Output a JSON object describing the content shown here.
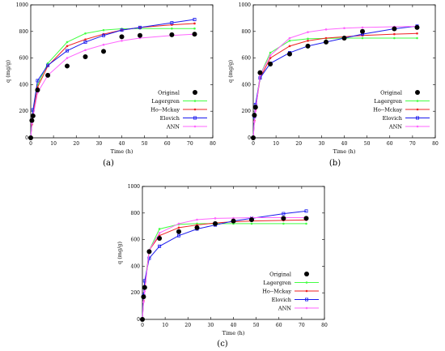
{
  "figure": {
    "captions": [
      "(a)",
      "(b)",
      "(c)"
    ]
  },
  "chart_data": [
    {
      "type": "scatter",
      "panel": "(a)",
      "xlabel": "Time (h)",
      "ylabel": "q (mg/g)",
      "xlim": [
        0,
        80
      ],
      "ylim": [
        0,
        1000
      ],
      "xticks": [
        0,
        10,
        20,
        30,
        40,
        50,
        60,
        70,
        80
      ],
      "yticks": [
        0,
        200,
        400,
        600,
        800,
        1000
      ],
      "legend_position": "center-right",
      "series": [
        {
          "name": "Original",
          "color": "#000000",
          "style": "dots",
          "x": [
            0,
            0.5,
            1,
            3,
            7.5,
            16,
            24,
            32,
            40,
            48,
            62,
            72
          ],
          "y": [
            0,
            130,
            165,
            360,
            470,
            540,
            610,
            650,
            760,
            770,
            775,
            780
          ]
        },
        {
          "name": "Lagergren",
          "color": "#44ff44",
          "style": "line",
          "x": [
            0,
            0.5,
            1,
            3,
            7.5,
            16,
            24,
            32,
            40,
            48,
            62,
            72
          ],
          "y": [
            0,
            120,
            200,
            400,
            560,
            720,
            785,
            810,
            820,
            822,
            822,
            822
          ]
        },
        {
          "name": "Ho--Mckay",
          "color": "#ee2222",
          "style": "line",
          "x": [
            0,
            0.5,
            1,
            3,
            7.5,
            16,
            24,
            32,
            40,
            48,
            62,
            72
          ],
          "y": [
            0,
            100,
            170,
            380,
            540,
            690,
            740,
            780,
            810,
            830,
            850,
            860
          ]
        },
        {
          "name": "Elovich",
          "color": "#1a1aee",
          "style": "line",
          "x": [
            0,
            0.5,
            1,
            3,
            7.5,
            16,
            24,
            32,
            40,
            48,
            62,
            72
          ],
          "y": [
            0,
            130,
            210,
            430,
            545,
            655,
            720,
            770,
            810,
            830,
            865,
            890
          ]
        },
        {
          "name": "ANN",
          "color": "#ff66ff",
          "style": "line",
          "x": [
            0,
            0.5,
            1,
            3,
            7.5,
            16,
            24,
            32,
            40,
            48,
            62,
            72
          ],
          "y": [
            0,
            110,
            160,
            340,
            470,
            600,
            660,
            700,
            730,
            750,
            770,
            780
          ]
        }
      ]
    },
    {
      "type": "scatter",
      "panel": "(b)",
      "xlabel": "Time (h)",
      "ylabel": "q (mg/g)",
      "xlim": [
        0,
        80
      ],
      "ylim": [
        0,
        1000
      ],
      "xticks": [
        0,
        10,
        20,
        30,
        40,
        50,
        60,
        70,
        80
      ],
      "yticks": [
        0,
        200,
        400,
        600,
        800,
        1000
      ],
      "legend_position": "center-right",
      "series": [
        {
          "name": "Original",
          "color": "#000000",
          "style": "dots",
          "x": [
            0,
            0.5,
            1,
            3,
            7.5,
            16,
            24,
            32,
            40,
            48,
            62,
            72
          ],
          "y": [
            0,
            170,
            230,
            490,
            555,
            630,
            690,
            720,
            750,
            800,
            820,
            830
          ]
        },
        {
          "name": "Lagergren",
          "color": "#44ff44",
          "style": "line",
          "x": [
            0,
            0.5,
            1,
            3,
            7.5,
            16,
            24,
            32,
            40,
            48,
            62,
            72
          ],
          "y": [
            0,
            150,
            230,
            470,
            640,
            730,
            745,
            748,
            750,
            750,
            750,
            750
          ]
        },
        {
          "name": "Ho--Mckay",
          "color": "#ee2222",
          "style": "line",
          "x": [
            0,
            0.5,
            1,
            3,
            7.5,
            16,
            24,
            32,
            40,
            48,
            62,
            72
          ],
          "y": [
            0,
            130,
            210,
            450,
            600,
            690,
            730,
            750,
            760,
            770,
            780,
            785
          ]
        },
        {
          "name": "Elovich",
          "color": "#1a1aee",
          "style": "line",
          "x": [
            0,
            0.5,
            1,
            3,
            7.5,
            16,
            24,
            32,
            40,
            48,
            62,
            72
          ],
          "y": [
            0,
            160,
            250,
            450,
            560,
            640,
            690,
            720,
            750,
            780,
            820,
            840
          ]
        },
        {
          "name": "ANN",
          "color": "#ff66ff",
          "style": "line",
          "x": [
            0,
            0.5,
            1,
            3,
            7.5,
            16,
            24,
            32,
            40,
            48,
            62,
            72
          ],
          "y": [
            0,
            120,
            200,
            470,
            620,
            750,
            795,
            815,
            825,
            830,
            835,
            838
          ]
        }
      ]
    },
    {
      "type": "scatter",
      "panel": "(c)",
      "xlabel": "Time (h)",
      "ylabel": "q (mg/g)",
      "xlim": [
        0,
        80
      ],
      "ylim": [
        0,
        1000
      ],
      "xticks": [
        0,
        10,
        20,
        30,
        40,
        50,
        60,
        70,
        80
      ],
      "yticks": [
        0,
        200,
        400,
        600,
        800,
        1000
      ],
      "legend_position": "center-right",
      "series": [
        {
          "name": "Original",
          "color": "#000000",
          "style": "dots",
          "x": [
            0,
            0.5,
            1,
            3,
            7.5,
            16,
            24,
            32,
            40,
            48,
            62,
            72
          ],
          "y": [
            0,
            170,
            240,
            510,
            610,
            660,
            690,
            720,
            740,
            750,
            760,
            760
          ]
        },
        {
          "name": "Lagergren",
          "color": "#44ff44",
          "style": "line",
          "x": [
            0,
            0.5,
            1,
            3,
            7.5,
            16,
            24,
            32,
            40,
            48,
            62,
            72
          ],
          "y": [
            0,
            160,
            250,
            520,
            680,
            715,
            720,
            720,
            720,
            720,
            720,
            720
          ]
        },
        {
          "name": "Ho--Mckay",
          "color": "#ee2222",
          "style": "line",
          "x": [
            0,
            0.5,
            1,
            3,
            7.5,
            16,
            24,
            32,
            40,
            48,
            62,
            72
          ],
          "y": [
            0,
            140,
            230,
            520,
            630,
            690,
            710,
            725,
            735,
            740,
            745,
            748
          ]
        },
        {
          "name": "Elovich",
          "color": "#1a1aee",
          "style": "line",
          "x": [
            0,
            0.5,
            1,
            3,
            7.5,
            16,
            24,
            32,
            40,
            48,
            62,
            72
          ],
          "y": [
            0,
            180,
            290,
            460,
            550,
            630,
            680,
            710,
            740,
            760,
            795,
            815
          ]
        },
        {
          "name": "ANN",
          "color": "#ff66ff",
          "style": "line",
          "x": [
            0,
            0.5,
            1,
            3,
            7.5,
            16,
            24,
            32,
            40,
            48,
            62,
            72
          ],
          "y": [
            0,
            130,
            210,
            520,
            650,
            720,
            750,
            760,
            762,
            765,
            765,
            765
          ]
        }
      ]
    }
  ]
}
